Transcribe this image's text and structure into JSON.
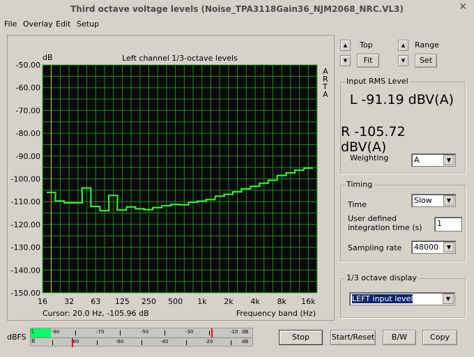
{
  "window": {
    "title": "Third octave voltage levels (Noise_TPA3118Gain36_NJM2068_NRC.VL3)",
    "close": "✕"
  },
  "menu": [
    "File",
    "Overlay",
    "Edit",
    "Setup"
  ],
  "controls": {
    "top_label": "Top",
    "range_label": "Range",
    "fit": "Fit",
    "set": "Set"
  },
  "rms": {
    "title": "Input RMS Level",
    "left": "L -91.19 dBV(A)",
    "right": "R -105.72 dBV(A)",
    "weighting_label": "Weighting",
    "weighting": "A"
  },
  "timing": {
    "title": "Timing",
    "time_label": "Time",
    "time": "Slow",
    "integration_label_1": "User defined",
    "integration_label_2": "integration time (s)",
    "integration": "1",
    "sr_label": "Sampling rate",
    "sr": "48000"
  },
  "display": {
    "title": "1/3 octave display",
    "value": "LEFT input level"
  },
  "buttons": {
    "stop": "Stop",
    "start": "Start/Reset",
    "bw": "B/W",
    "copy": "Copy"
  },
  "meter": {
    "label": "dBFS",
    "l": "L",
    "r": "R",
    "l_ticks": [
      "-90",
      "-70",
      "-50",
      "-30",
      "-10"
    ],
    "r_ticks": [
      "-80",
      "-60",
      "-40",
      "-20"
    ],
    "unit": "dB",
    "l_fill_color": "#00ff66",
    "peak_color": "#ff0000"
  },
  "chart_data": {
    "type": "line",
    "title": "Left channel 1/3-octave levels",
    "ylabel": "dB",
    "xlabel": "Frequency band (Hz)",
    "watermark": "ARTA",
    "cursor": "Cursor:   20.0 Hz, -105.96 dB",
    "ylim": [
      -150,
      -50
    ],
    "xlim": [
      16,
      20000
    ],
    "xscale": "log",
    "grid": true,
    "yticks": [
      "-50.00",
      "-60.00",
      "-70.00",
      "-80.00",
      "-90.00",
      "-100.00",
      "-110.00",
      "-120.00",
      "-130.00",
      "-140.00",
      "-150.00"
    ],
    "xticks": [
      "16",
      "32",
      "63",
      "125",
      "250",
      "500",
      "1k",
      "2k",
      "4k",
      "8k",
      "16k"
    ],
    "cursor_hz": 20,
    "colors": {
      "background": "#0a0a0a",
      "grid": "#1c8c1c",
      "line": "#33ff33",
      "cursor": "#d4b400"
    },
    "x": [
      20,
      25,
      31.5,
      40,
      50,
      63,
      80,
      100,
      125,
      160,
      200,
      250,
      315,
      400,
      500,
      630,
      800,
      1000,
      1250,
      1600,
      2000,
      2500,
      3150,
      4000,
      5000,
      6300,
      8000,
      10000,
      12500,
      16000
    ],
    "values": [
      -105.96,
      -109.7,
      -110.5,
      -110.5,
      -104.0,
      -112.1,
      -114.0,
      -107.3,
      -113.7,
      -112.3,
      -113.1,
      -113.5,
      -112.6,
      -111.8,
      -111.2,
      -111.4,
      -110.3,
      -109.8,
      -109.1,
      -107.6,
      -106.8,
      -105.7,
      -104.4,
      -103.3,
      -101.9,
      -100.6,
      -98.5,
      -97.4,
      -96.2,
      -95.3
    ]
  }
}
